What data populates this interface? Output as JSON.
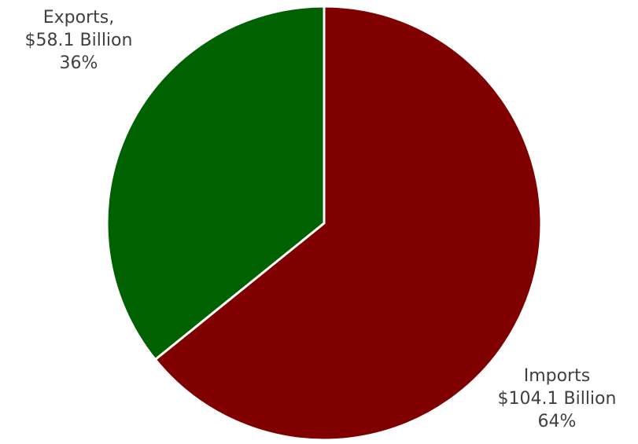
{
  "chart_data": {
    "type": "pie",
    "title": "",
    "slices": [
      {
        "name": "Imports",
        "name_text": "Imports",
        "value": 104.1,
        "value_text": "$104.1 Billion",
        "percent": 64,
        "percent_text": "64%",
        "color": "#800000"
      },
      {
        "name": "Exports",
        "name_text": "Exports,",
        "value": 58.1,
        "value_text": "$58.1 Billion",
        "percent": 36,
        "percent_text": "36%",
        "color": "#006100"
      }
    ],
    "start_angle": "12 o'clock",
    "direction": "clockwise",
    "legend": "none"
  }
}
